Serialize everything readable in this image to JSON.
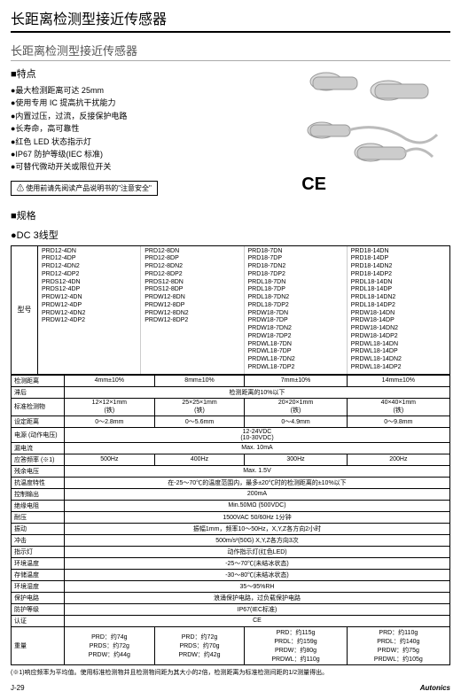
{
  "title": "长距离检测型接近传感器",
  "subtitle": "长距离检测型接近传感器",
  "features_heading": "■特点",
  "features": [
    "●最大检测距离可达 25mm",
    "●使用专用 IC 提高抗干扰能力",
    "●内置过压，过流，反接保护电路",
    "●长寿命，高可靠性",
    "●红色 LED 状态指示灯",
    "●IP67 防护等级(IEC 标准)",
    "●可替代微动开关或限位开关"
  ],
  "warning": "⚠ 使用前请先阅读产品说明书的\"注意安全\"",
  "ce": "CE",
  "spec_heading": "■规格",
  "dc_heading": "●DC 3线型",
  "model_label": "型号",
  "models": {
    "col1": [
      "PRD12-4DN",
      "PRD12-4DP",
      "PRD12-4DN2",
      "PRD12-4DP2",
      "PRDS12-4DN",
      "PRDS12-4DP",
      "PRDW12-4DN",
      "PRDW12-4DP",
      "PRDW12-4DN2",
      "PRDW12-4DP2"
    ],
    "col2": [
      "PRD12-8DN",
      "PRD12-8DP",
      "PRD12-8DN2",
      "PRD12-8DP2",
      "PRDS12-8DN",
      "PRDS12-8DP",
      "PRDW12-8DN",
      "PRDW12-8DP",
      "PRDW12-8DN2",
      "PRDW12-8DP2"
    ],
    "col3": [
      "PRD18-7DN",
      "PRD18-7DP",
      "PRD18-7DN2",
      "PRD18-7DP2",
      "PRDL18-7DN",
      "PRDL18-7DP",
      "PRDL18-7DN2",
      "PRDL18-7DP2",
      "PRDW18-7DN",
      "PRDW18-7DP",
      "PRDW18-7DN2",
      "PRDW18-7DP2",
      "PRDWL18-7DN",
      "PRDWL18-7DP",
      "PRDWL18-7DN2",
      "PRDWL18-7DP2"
    ],
    "col4": [
      "PRD18-14DN",
      "PRD18-14DP",
      "PRD18-14DN2",
      "PRD18-14DP2",
      "PRDL18-14DN",
      "PRDL18-14DP",
      "PRDL18-14DN2",
      "PRDL18-14DP2",
      "PRDW18-14DN",
      "PRDW18-14DP",
      "PRDW18-14DN2",
      "PRDW18-14DP2",
      "PRDWL18-14DN",
      "PRDWL18-14DP",
      "PRDWL18-14DN2",
      "PRDWL18-14DP2"
    ]
  },
  "specs": [
    {
      "label": "检测距离",
      "v": [
        "4mm±10%",
        "8mm±10%",
        "7mm±10%",
        "14mm±10%"
      ]
    },
    {
      "label": "滞后",
      "v": [
        "检测距离的10%以下"
      ],
      "span": 4
    },
    {
      "label": "标准检测物",
      "v": [
        "12×12×1mm\n(铁)",
        "25×25×1mm\n(铁)",
        "20×20×1mm\n(铁)",
        "40×40×1mm\n(铁)"
      ]
    },
    {
      "label": "设定距离",
      "v": [
        "0～2.8mm",
        "0～5.6mm",
        "0～4.9mm",
        "0～9.8mm"
      ]
    },
    {
      "label": "电源 (动作电压)",
      "v": [
        "12-24VDC\n(10-30VDC)"
      ],
      "span": 4
    },
    {
      "label": "漏电流",
      "v": [
        "Max. 10mA"
      ],
      "span": 4
    },
    {
      "label": "应答频率 (※1)",
      "v": [
        "500Hz",
        "400Hz",
        "300Hz",
        "200Hz"
      ]
    },
    {
      "label": "残余电压",
      "v": [
        "Max. 1.5V"
      ],
      "span": 4
    },
    {
      "label": "抗温度特性",
      "v": [
        "在-25～70℃的温度范围内，最多±20℃时的检测距离的±10%以下"
      ],
      "span": 4
    },
    {
      "label": "控制输出",
      "v": [
        "200mA"
      ],
      "span": 4
    },
    {
      "label": "绝缘电阻",
      "v": [
        "Min.50MΩ (500VDC)"
      ],
      "span": 4
    },
    {
      "label": "耐压",
      "v": [
        "1500VAC 50/60Hz 1分钟"
      ],
      "span": 4
    },
    {
      "label": "振动",
      "v": [
        "振幅1mm，频率10～50Hz，X,Y,Z各方向2小时"
      ],
      "span": 4
    },
    {
      "label": "冲击",
      "v": [
        "500m/s²(50G) X,Y,Z各方向3次"
      ],
      "span": 4
    },
    {
      "label": "指示灯",
      "v": [
        "动作指示灯(红色LED)"
      ],
      "span": 4
    },
    {
      "label": "环境温度",
      "v": [
        "-25～70℃(未结冰状态)"
      ],
      "span": 4
    },
    {
      "label": "存储温度",
      "v": [
        "-30～80℃(未结冰状态)"
      ],
      "span": 4
    },
    {
      "label": "环境湿度",
      "v": [
        "35～95%RH"
      ],
      "span": 4
    },
    {
      "label": "保护电路",
      "v": [
        "浪涌保护电路，过负载保护电路"
      ],
      "span": 4
    },
    {
      "label": "防护等级",
      "v": [
        "IP67(IEC标准)"
      ],
      "span": 4
    },
    {
      "label": "认证",
      "v": [
        "CE"
      ],
      "span": 4
    },
    {
      "label": "重量",
      "v": [
        "PRD：约74g\nPRDS：约72g\nPRDW：约44g",
        "PRD：约72g\nPRDS：约70g\nPRDW：约42g",
        "PRD：约115g\nPRDL：约159g\nPRDW：约80g\nPRDWL：约110g",
        "PRD：约110g\nPRDL：约140g\nPRDW：约75g\nPRDWL：约105g"
      ]
    }
  ],
  "note": "(※1)响应频率为平均值。使用标准检测物并且检测物间距为其大小的2倍，检测距离为标准检测间距的1/2测量得出。",
  "page_num": "J-29",
  "brand": "Autonics"
}
